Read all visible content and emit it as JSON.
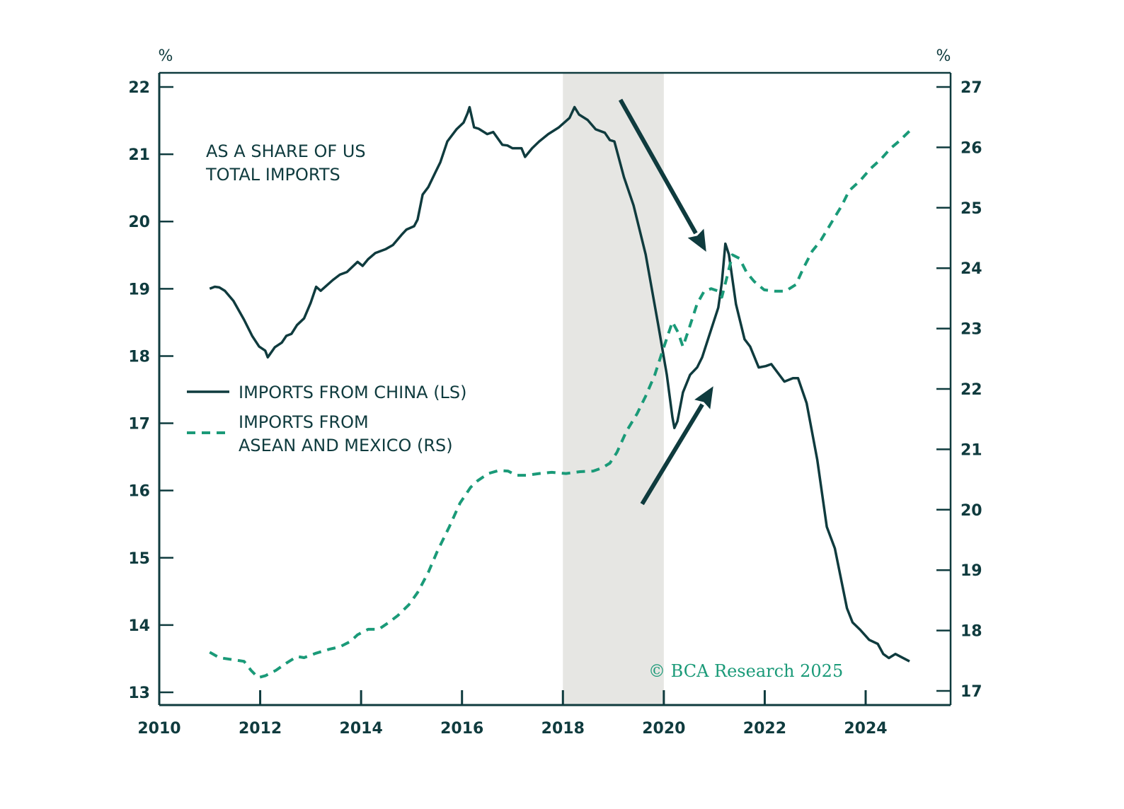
{
  "chart_data": {
    "type": "line",
    "title": "",
    "annotation": [
      "AS A SHARE OF US",
      "TOTAL IMPORTS"
    ],
    "xlabel": "",
    "ylabel_left": "%",
    "ylabel_right": "%",
    "xlim": [
      2010,
      2025.68
    ],
    "ylim_left": [
      12.8,
      22.2
    ],
    "ylim_right": [
      16.8,
      27.23
    ],
    "x_ticks": [
      2010,
      2012,
      2014,
      2016,
      2018,
      2020,
      2022,
      2024
    ],
    "x_tick_labels": [
      "2010",
      "2012",
      "2014",
      "2016",
      "2018",
      "2020",
      "2022",
      "2024"
    ],
    "y_left_ticks": [
      13,
      14,
      15,
      16,
      17,
      18,
      19,
      20,
      21,
      22
    ],
    "y_left_tick_labels": [
      "13",
      "14",
      "15",
      "16",
      "17",
      "18",
      "19",
      "20",
      "21",
      "22"
    ],
    "y_right_ticks": [
      17,
      18,
      19,
      20,
      21,
      22,
      23,
      24,
      25,
      26,
      27
    ],
    "y_right_tick_labels": [
      "17",
      "18",
      "19",
      "20",
      "21",
      "22",
      "23",
      "24",
      "25",
      "26",
      "27"
    ],
    "grid": false,
    "legend_position": "center-left",
    "shaded_regions": [
      {
        "from": 2018.0,
        "to": 2020.0,
        "color": "#e6e6e3"
      }
    ],
    "colors": {
      "axis": "#0f3b3e",
      "china": "#0f3b3e",
      "asean": "#1a9a78",
      "arrow": "#0f3b3e"
    },
    "arrows": [
      {
        "name": "down-arrow",
        "from": [
          2019.14,
          21.81
        ],
        "to": [
          2020.84,
          19.55
        ],
        "axis": "left"
      },
      {
        "name": "up-arrow",
        "from": [
          2019.57,
          15.8
        ],
        "to": [
          2020.98,
          17.55
        ],
        "axis": "left"
      }
    ],
    "watermark": "© BCA Research 2025",
    "series": [
      {
        "name": "IMPORTS FROM CHINA (LS)",
        "axis": "left",
        "style": "solid",
        "x": [
          2011.0,
          2011.1,
          2011.19,
          2011.3,
          2011.47,
          2011.68,
          2011.84,
          2011.98,
          2012.1,
          2012.15,
          2012.29,
          2012.43,
          2012.52,
          2012.62,
          2012.73,
          2012.87,
          2013.0,
          2013.11,
          2013.2,
          2013.32,
          2013.44,
          2013.58,
          2013.72,
          2013.93,
          2014.03,
          2014.14,
          2014.28,
          2014.49,
          2014.63,
          2014.8,
          2014.9,
          2015.05,
          2015.12,
          2015.22,
          2015.33,
          2015.48,
          2015.57,
          2015.71,
          2015.89,
          2016.03,
          2016.11,
          2016.15,
          2016.24,
          2016.33,
          2016.5,
          2016.62,
          2016.8,
          2016.9,
          2017.0,
          2017.18,
          2017.25,
          2017.39,
          2017.53,
          2017.71,
          2017.92,
          2018.13,
          2018.23,
          2018.32,
          2018.49,
          2018.65,
          2018.83,
          2018.93,
          2019.02,
          2019.21,
          2019.4,
          2019.64,
          2019.89,
          2020.06,
          2020.17,
          2020.21,
          2020.27,
          2020.38,
          2020.52,
          2020.66,
          2020.76,
          2020.94,
          2021.08,
          2021.15,
          2021.22,
          2021.29,
          2021.43,
          2021.6,
          2021.71,
          2021.88,
          2022.02,
          2022.13,
          2022.39,
          2022.56,
          2022.66,
          2022.83,
          2023.04,
          2023.23,
          2023.39,
          2023.63,
          2023.74,
          2023.89,
          2024.07,
          2024.24,
          2024.35,
          2024.46,
          2024.59,
          2024.87
        ],
        "values": [
          19.0,
          19.03,
          19.02,
          18.97,
          18.82,
          18.54,
          18.3,
          18.14,
          18.08,
          17.98,
          18.13,
          18.2,
          18.3,
          18.33,
          18.46,
          18.56,
          18.79,
          19.03,
          18.97,
          19.05,
          19.13,
          19.21,
          19.25,
          19.4,
          19.34,
          19.44,
          19.53,
          19.59,
          19.65,
          19.8,
          19.88,
          19.93,
          20.03,
          20.4,
          20.51,
          20.74,
          20.88,
          21.19,
          21.37,
          21.47,
          21.61,
          21.7,
          21.4,
          21.38,
          21.3,
          21.33,
          21.14,
          21.13,
          21.09,
          21.09,
          20.96,
          21.09,
          21.19,
          21.3,
          21.4,
          21.54,
          21.7,
          21.59,
          21.51,
          21.37,
          21.32,
          21.21,
          21.19,
          20.66,
          20.24,
          19.51,
          18.46,
          17.72,
          17.09,
          16.93,
          17.03,
          17.46,
          17.72,
          17.83,
          17.98,
          18.4,
          18.72,
          19.09,
          19.67,
          19.51,
          18.77,
          18.25,
          18.14,
          17.83,
          17.85,
          17.88,
          17.62,
          17.67,
          17.67,
          17.3,
          16.46,
          15.46,
          15.14,
          14.25,
          14.04,
          13.93,
          13.78,
          13.72,
          13.57,
          13.51,
          13.57,
          13.46
        ]
      },
      {
        "name": "IMPORTS FROM ASEAN AND MEXICO (RS)",
        "axis": "right",
        "style": "dashed",
        "x": [
          2011.0,
          2011.19,
          2011.51,
          2011.68,
          2011.82,
          2011.96,
          2012.1,
          2012.31,
          2012.52,
          2012.73,
          2012.87,
          2013.09,
          2013.37,
          2013.58,
          2013.79,
          2013.93,
          2014.14,
          2014.35,
          2014.56,
          2014.73,
          2014.95,
          2015.12,
          2015.33,
          2015.51,
          2015.75,
          2015.96,
          2016.17,
          2016.31,
          2016.52,
          2016.73,
          2016.91,
          2017.08,
          2017.29,
          2017.53,
          2017.78,
          2018.06,
          2018.34,
          2018.6,
          2018.77,
          2018.93,
          2019.07,
          2019.26,
          2019.47,
          2019.64,
          2019.82,
          2019.96,
          2020.1,
          2020.17,
          2020.28,
          2020.38,
          2020.52,
          2020.66,
          2020.8,
          2020.94,
          2021.08,
          2021.15,
          2021.25,
          2021.36,
          2021.5,
          2021.64,
          2021.79,
          2021.99,
          2022.2,
          2022.41,
          2022.62,
          2022.76,
          2022.94,
          2023.11,
          2023.32,
          2023.53,
          2023.67,
          2023.89,
          2024.1,
          2024.31,
          2024.49,
          2024.66,
          2024.87
        ],
        "values": [
          17.64,
          17.55,
          17.51,
          17.49,
          17.34,
          17.22,
          17.25,
          17.34,
          17.46,
          17.57,
          17.55,
          17.62,
          17.69,
          17.73,
          17.82,
          17.93,
          18.02,
          18.02,
          18.14,
          18.25,
          18.43,
          18.63,
          18.96,
          19.31,
          19.72,
          20.11,
          20.37,
          20.48,
          20.6,
          20.65,
          20.64,
          20.57,
          20.57,
          20.6,
          20.62,
          20.6,
          20.63,
          20.64,
          20.69,
          20.77,
          20.95,
          21.3,
          21.59,
          21.88,
          22.23,
          22.59,
          22.94,
          23.11,
          22.94,
          22.7,
          23.05,
          23.41,
          23.62,
          23.66,
          23.62,
          23.52,
          23.85,
          24.22,
          24.16,
          23.93,
          23.78,
          23.64,
          23.62,
          23.62,
          23.73,
          23.99,
          24.28,
          24.46,
          24.75,
          25.04,
          25.28,
          25.45,
          25.65,
          25.81,
          25.98,
          26.1,
          26.27
        ]
      }
    ]
  }
}
